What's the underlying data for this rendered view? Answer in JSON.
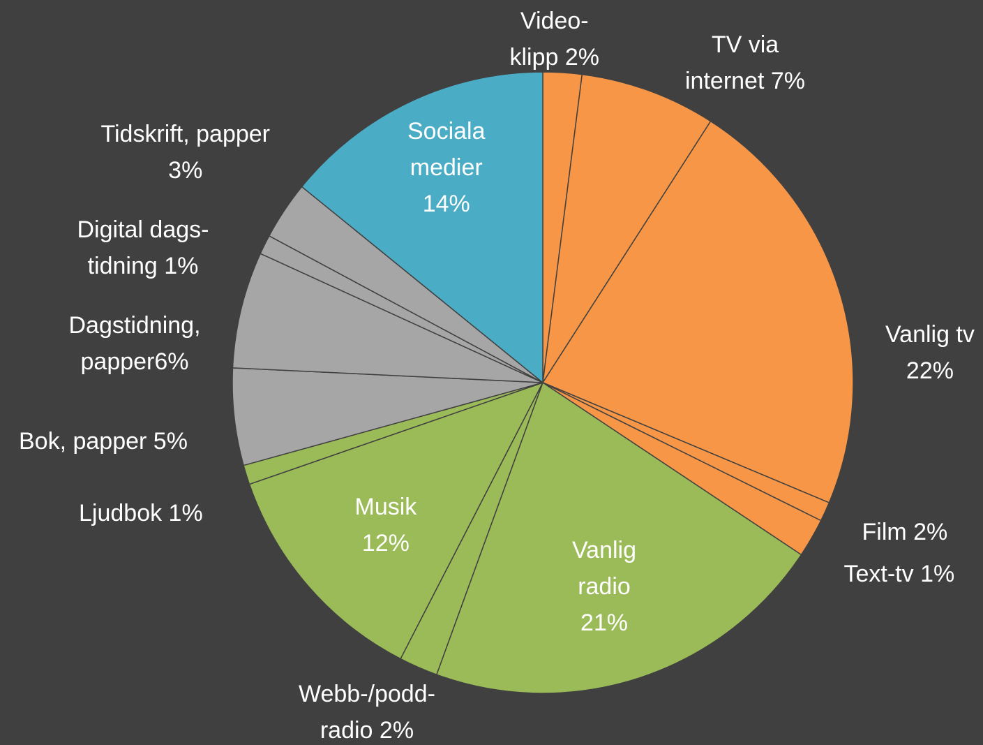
{
  "chart_data": {
    "type": "pie",
    "start_angle_deg": 0,
    "direction": "clockwise",
    "slices": [
      {
        "lines": [
          "Video-",
          "klipp 2%"
        ],
        "value": 2,
        "color": "#F79646",
        "text_color": "#FFFFFF"
      },
      {
        "lines": [
          "TV via",
          "internet 7%"
        ],
        "value": 7,
        "color": "#F79646",
        "text_color": "#FFFFFF"
      },
      {
        "lines": [
          "Vanlig tv",
          "22%"
        ],
        "value": 22,
        "color": "#F79646",
        "text_color": "#FFFFFF"
      },
      {
        "lines": [
          "Text-tv 1%"
        ],
        "value": 1,
        "color": "#F79646",
        "text_color": "#FFFFFF"
      },
      {
        "lines": [
          "Film 2%"
        ],
        "value": 2,
        "color": "#F79646",
        "text_color": "#FFFFFF"
      },
      {
        "lines": [
          "Vanlig",
          "radio",
          "21%"
        ],
        "value": 21,
        "color": "#9BBB59",
        "text_color": "#FFFFFF"
      },
      {
        "lines": [
          "Webb-/podd-",
          "radio 2%"
        ],
        "value": 2,
        "color": "#9BBB59",
        "text_color": "#FFFFFF"
      },
      {
        "lines": [
          "Musik",
          "12%"
        ],
        "value": 12,
        "color": "#9BBB59",
        "text_color": "#FFFFFF"
      },
      {
        "lines": [
          "Ljudbok 1%"
        ],
        "value": 1,
        "color": "#9BBB59",
        "text_color": "#FFFFFF"
      },
      {
        "lines": [
          "Bok, papper 5%"
        ],
        "value": 5,
        "color": "#A6A6A6",
        "text_color": "#FFFFFF"
      },
      {
        "lines": [
          "Dagstidning,",
          "papper6%"
        ],
        "value": 6,
        "color": "#A6A6A6",
        "text_color": "#FFFFFF"
      },
      {
        "lines": [
          "Digital dags-",
          "tidning 1%"
        ],
        "value": 1,
        "color": "#A6A6A6",
        "text_color": "#FFFFFF"
      },
      {
        "lines": [
          "Tidskrift, papper",
          "3%"
        ],
        "value": 3,
        "color": "#A6A6A6",
        "text_color": "#FFFFFF"
      },
      {
        "lines": [
          "Sociala",
          "medier",
          "14%"
        ],
        "value": 14,
        "color": "#4BACC6",
        "text_color": "#FFFFFF"
      }
    ]
  },
  "colors": {
    "background": "#404040",
    "slice_border": "#404040"
  }
}
